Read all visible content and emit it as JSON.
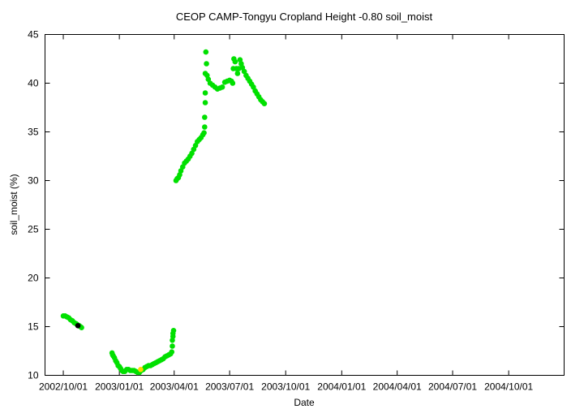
{
  "chart_data": {
    "type": "scatter",
    "title": "CEOP CAMP-Tongyu Cropland Height -0.80 soil_moist",
    "xlabel": "Date",
    "ylabel": "soil_moist (%)",
    "xlim": [
      "2002-09-01",
      "2004-12-31"
    ],
    "ylim": [
      10,
      45
    ],
    "x_ticks": [
      "2002/10/01",
      "2003/01/01",
      "2003/04/01",
      "2003/07/01",
      "2003/10/01",
      "2004/01/01",
      "2004/04/01",
      "2004/07/01",
      "2004/10/01"
    ],
    "y_ticks": [
      10,
      15,
      20,
      25,
      30,
      35,
      40,
      45
    ],
    "grid": false,
    "series": [
      {
        "color": "#00e000",
        "points": [
          [
            "2002-10-01",
            16.1
          ],
          [
            "2002-10-04",
            16.1
          ],
          [
            "2002-10-07",
            16.0
          ],
          [
            "2002-10-10",
            15.9
          ],
          [
            "2002-10-13",
            15.7
          ],
          [
            "2002-10-16",
            15.6
          ],
          [
            "2002-10-19",
            15.4
          ],
          [
            "2002-10-22",
            15.3
          ],
          [
            "2002-10-24",
            15.2
          ],
          [
            "2002-10-27",
            15.1
          ],
          [
            "2002-10-29",
            15.0
          ],
          [
            "2002-10-31",
            14.9
          ],
          [
            "2002-12-20",
            12.3
          ],
          [
            "2002-12-21",
            12.1
          ],
          [
            "2002-12-22",
            12.0
          ],
          [
            "2002-12-24",
            11.8
          ],
          [
            "2002-12-26",
            11.5
          ],
          [
            "2002-12-28",
            11.3
          ],
          [
            "2002-12-30",
            11.0
          ],
          [
            "2003-01-01",
            10.9
          ],
          [
            "2003-01-03",
            10.7
          ],
          [
            "2003-01-05",
            10.5
          ],
          [
            "2003-01-07",
            10.4
          ],
          [
            "2003-01-10",
            10.4
          ],
          [
            "2003-01-13",
            10.6
          ],
          [
            "2003-01-16",
            10.6
          ],
          [
            "2003-01-19",
            10.5
          ],
          [
            "2003-01-22",
            10.5
          ],
          [
            "2003-01-25",
            10.5
          ],
          [
            "2003-01-28",
            10.4
          ],
          [
            "2003-01-31",
            10.3
          ],
          [
            "2003-02-03",
            10.3
          ],
          [
            "2003-02-06",
            10.5
          ],
          [
            "2003-02-09",
            10.6
          ],
          [
            "2003-02-12",
            10.8
          ],
          [
            "2003-02-15",
            10.9
          ],
          [
            "2003-02-18",
            11.0
          ],
          [
            "2003-02-21",
            11.0
          ],
          [
            "2003-02-24",
            11.1
          ],
          [
            "2003-02-27",
            11.2
          ],
          [
            "2003-03-02",
            11.3
          ],
          [
            "2003-03-05",
            11.4
          ],
          [
            "2003-03-08",
            11.5
          ],
          [
            "2003-03-11",
            11.6
          ],
          [
            "2003-03-14",
            11.7
          ],
          [
            "2003-03-17",
            11.9
          ],
          [
            "2003-03-20",
            12.0
          ],
          [
            "2003-03-23",
            12.1
          ],
          [
            "2003-03-26",
            12.2
          ],
          [
            "2003-03-28",
            12.4
          ],
          [
            "2003-03-29",
            13.0
          ],
          [
            "2003-03-29",
            13.6
          ],
          [
            "2003-03-30",
            14.0
          ],
          [
            "2003-03-30",
            14.3
          ],
          [
            "2003-03-31",
            14.6
          ],
          [
            "2003-04-04",
            30.0
          ],
          [
            "2003-04-06",
            30.2
          ],
          [
            "2003-04-08",
            30.3
          ],
          [
            "2003-04-10",
            30.6
          ],
          [
            "2003-04-12",
            31.0
          ],
          [
            "2003-04-15",
            31.4
          ],
          [
            "2003-04-18",
            31.8
          ],
          [
            "2003-04-21",
            32.0
          ],
          [
            "2003-04-24",
            32.2
          ],
          [
            "2003-04-27",
            32.5
          ],
          [
            "2003-04-30",
            32.8
          ],
          [
            "2003-05-03",
            33.2
          ],
          [
            "2003-05-06",
            33.6
          ],
          [
            "2003-05-09",
            34.0
          ],
          [
            "2003-05-12",
            34.2
          ],
          [
            "2003-05-15",
            34.4
          ],
          [
            "2003-05-18",
            34.7
          ],
          [
            "2003-05-20",
            34.9
          ],
          [
            "2003-05-21",
            35.5
          ],
          [
            "2003-05-21",
            36.5
          ],
          [
            "2003-05-22",
            38.0
          ],
          [
            "2003-05-22",
            39.0
          ],
          [
            "2003-05-22",
            41.0
          ],
          [
            "2003-05-23",
            43.2
          ],
          [
            "2003-05-24",
            42.0
          ],
          [
            "2003-05-25",
            40.8
          ],
          [
            "2003-05-27",
            40.4
          ],
          [
            "2003-05-30",
            40.0
          ],
          [
            "2003-06-03",
            39.8
          ],
          [
            "2003-06-07",
            39.6
          ],
          [
            "2003-06-11",
            39.4
          ],
          [
            "2003-06-15",
            39.5
          ],
          [
            "2003-06-19",
            39.6
          ],
          [
            "2003-06-23",
            40.1
          ],
          [
            "2003-06-27",
            40.2
          ],
          [
            "2003-07-01",
            40.3
          ],
          [
            "2003-07-04",
            40.2
          ],
          [
            "2003-07-06",
            40.0
          ],
          [
            "2003-07-07",
            41.5
          ],
          [
            "2003-07-08",
            42.5
          ],
          [
            "2003-07-10",
            42.2
          ],
          [
            "2003-07-12",
            41.5
          ],
          [
            "2003-07-14",
            41.0
          ],
          [
            "2003-07-16",
            41.5
          ],
          [
            "2003-07-18",
            42.4
          ],
          [
            "2003-07-20",
            42.0
          ],
          [
            "2003-07-22",
            41.6
          ],
          [
            "2003-07-25",
            41.2
          ],
          [
            "2003-07-28",
            40.8
          ],
          [
            "2003-07-31",
            40.5
          ],
          [
            "2003-08-03",
            40.2
          ],
          [
            "2003-08-06",
            39.9
          ],
          [
            "2003-08-09",
            39.6
          ],
          [
            "2003-08-12",
            39.2
          ],
          [
            "2003-08-15",
            38.9
          ],
          [
            "2003-08-18",
            38.6
          ],
          [
            "2003-08-21",
            38.3
          ],
          [
            "2003-08-24",
            38.1
          ],
          [
            "2003-08-27",
            37.9
          ]
        ]
      },
      {
        "color": "#000000",
        "points": [
          [
            "2002-10-25",
            15.1
          ]
        ]
      },
      {
        "color": "#ffd700",
        "points": [
          [
            "2003-02-05",
            10.6
          ]
        ]
      }
    ]
  }
}
